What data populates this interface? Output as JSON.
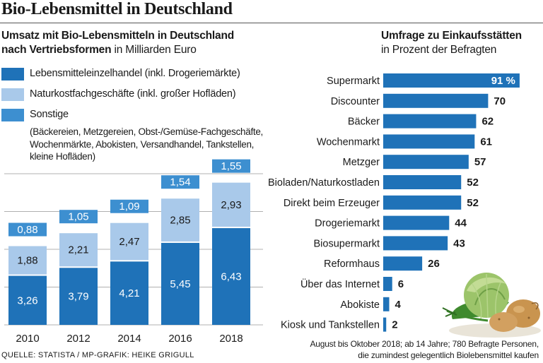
{
  "title": "Bio-Lebensmittel in Deutschland",
  "colors": {
    "dark": "#1f72b8",
    "light": "#a9c9ea",
    "mid": "#3d8fd0",
    "grid": "#b0b0b0"
  },
  "chart_data": [
    {
      "type": "bar",
      "stacked": true,
      "title": "Umsatz mit Bio-Lebensmitteln in Deutschland",
      "subtitle_bold": "nach Vertriebsformen",
      "subtitle_unit": "in Milliarden Euro",
      "categories": [
        "2010",
        "2012",
        "2014",
        "2016",
        "2018"
      ],
      "series": [
        {
          "name": "Lebensmitteleinzelhandel (inkl. Drogeriemärkte)",
          "values": [
            3.26,
            3.79,
            4.21,
            5.45,
            6.43
          ],
          "labels": [
            "3,26",
            "3,79",
            "4,21",
            "5,45",
            "6,43"
          ]
        },
        {
          "name": "Naturkostfachgeschäfte (inkl. großer Hofläden)",
          "values": [
            1.88,
            2.21,
            2.47,
            2.85,
            2.93
          ],
          "labels": [
            "1,88",
            "2,21",
            "2,47",
            "2,85",
            "2,93"
          ]
        },
        {
          "name": "Sonstige",
          "values": [
            0.88,
            1.05,
            1.09,
            1.54,
            1.55
          ],
          "labels": [
            "0,88",
            "1,05",
            "1,09",
            "1,54",
            "1,55"
          ]
        }
      ],
      "legend_note": [
        "(Bäckereien, Metzgereien, Obst-/Gemüse-Fachgeschäfte,",
        "Wochenmärkte, Abokisten, Versandhandel, Tankstellen,",
        "kleine Hofläden)"
      ],
      "ylim": [
        0,
        11
      ],
      "grid": true
    },
    {
      "type": "bar",
      "orientation": "horizontal",
      "title": "Umfrage zu Einkaufsstätten",
      "subtitle": "in Prozent der Befragten",
      "categories": [
        "Supermarkt",
        "Discounter",
        "Bäcker",
        "Wochenmarkt",
        "Metzger",
        "Bioladen/Naturkostladen",
        "Direkt beim Erzeuger",
        "Drogeriemarkt",
        "Biosupermarkt",
        "Reformhaus",
        "Über das Internet",
        "Abokiste",
        "Kiosk und Tankstellen"
      ],
      "values": [
        91,
        70,
        62,
        61,
        57,
        52,
        52,
        44,
        43,
        26,
        6,
        4,
        2
      ],
      "value_labels": [
        "91 %",
        "70",
        "62",
        "61",
        "57",
        "52",
        "52",
        "44",
        "43",
        "26",
        "6",
        "4",
        "2"
      ],
      "xlim": [
        0,
        100
      ]
    }
  ],
  "source": "QUELLE: STATISTA / MP-GRAFIK: HEIKE GRIGULL",
  "footnote": [
    "August bis Oktober 2018; ab 14 Jahre; 780 Befragte Personen,",
    "die zumindest gelegentlich Biolebensmittel kaufen"
  ]
}
